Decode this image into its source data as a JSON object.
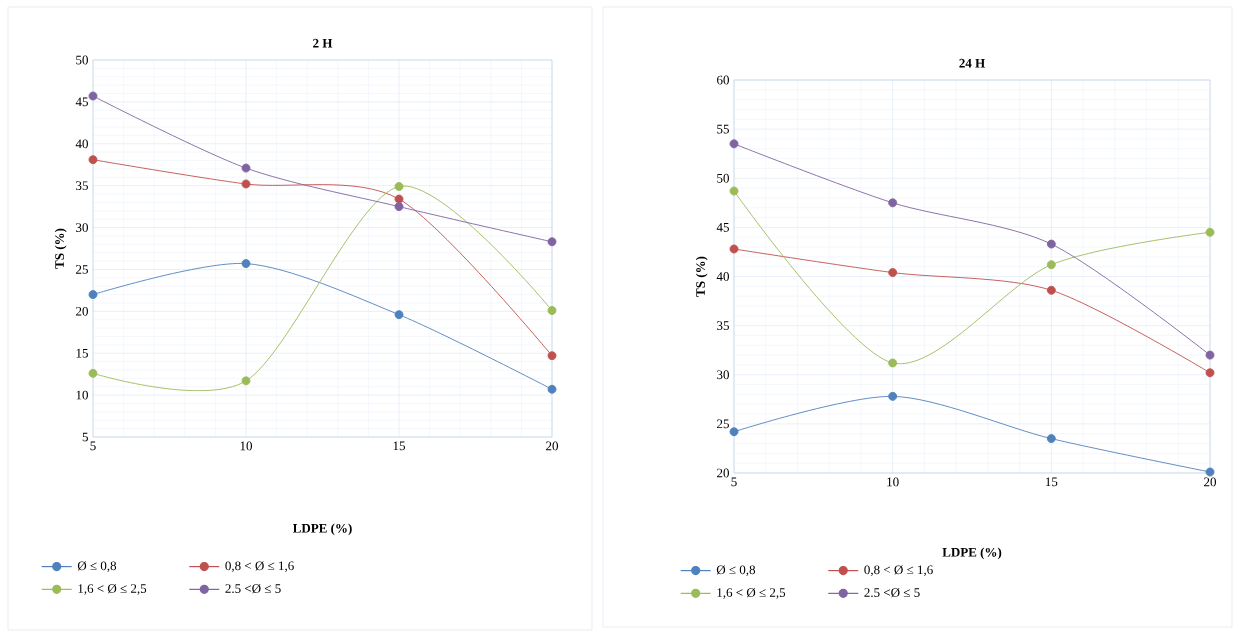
{
  "chart_data": [
    {
      "type": "line",
      "title": "2 H",
      "xlabel": "LDPE (%)",
      "ylabel": "TS (%)",
      "x": [
        5,
        10,
        15,
        20
      ],
      "xlim": [
        5,
        20
      ],
      "xticks": [
        5,
        10,
        15,
        20
      ],
      "ylim": [
        5,
        50
      ],
      "yticks": [
        5,
        10,
        15,
        20,
        25,
        30,
        35,
        40,
        45,
        50
      ],
      "grid": true,
      "legend": "bottom",
      "marker": "circle",
      "series": [
        {
          "name": "Ø ≤ 0,8",
          "color": "#4f81bd",
          "values": [
            22.0,
            25.7,
            19.6,
            10.7
          ]
        },
        {
          "name": "0,8 < Ø ≤ 1,6",
          "color": "#c0504d",
          "values": [
            38.1,
            35.2,
            33.4,
            14.7
          ]
        },
        {
          "name": "1,6 < Ø ≤ 2,5",
          "color": "#9bbb59",
          "values": [
            12.6,
            11.7,
            34.9,
            20.1
          ]
        },
        {
          "name": "2.5 <Ø ≤ 5",
          "color": "#8064a2",
          "values": [
            45.7,
            37.1,
            32.5,
            28.3
          ]
        }
      ]
    },
    {
      "type": "line",
      "title": "24 H",
      "xlabel": "LDPE (%)",
      "ylabel": "TS (%)",
      "x": [
        5,
        10,
        15,
        20
      ],
      "xlim": [
        5,
        20
      ],
      "xticks": [
        5,
        10,
        15,
        20
      ],
      "ylim": [
        20,
        60
      ],
      "yticks": [
        20,
        25,
        30,
        35,
        40,
        45,
        50,
        55,
        60
      ],
      "grid": true,
      "legend": "bottom",
      "marker": "circle",
      "series": [
        {
          "name": "Ø ≤ 0,8",
          "color": "#4f81bd",
          "values": [
            24.2,
            27.8,
            23.5,
            20.1
          ]
        },
        {
          "name": "0,8 < Ø ≤ 1,6",
          "color": "#c0504d",
          "values": [
            42.8,
            40.4,
            38.6,
            30.2
          ]
        },
        {
          "name": "1,6 < Ø ≤ 2,5",
          "color": "#9bbb59",
          "values": [
            48.7,
            31.2,
            41.2,
            44.5
          ]
        },
        {
          "name": "2.5 <Ø ≤ 5",
          "color": "#8064a2",
          "values": [
            53.5,
            47.5,
            43.3,
            32.0
          ]
        }
      ]
    }
  ]
}
